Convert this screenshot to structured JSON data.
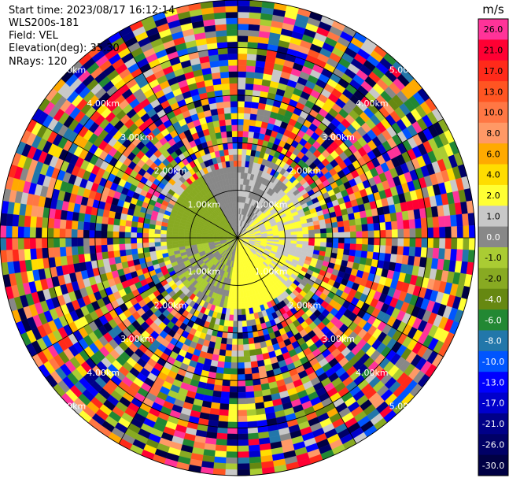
{
  "header": {
    "start_time": "Start time: 2023/08/17 16:12:14",
    "instrument": "WLS200s-181",
    "field": "Field: VEL",
    "elevation": "Elevation(deg): 35.30",
    "nrays": "NRays: 120"
  },
  "chart_data": {
    "type": "heatmap",
    "projection": "polar-ppi",
    "field": "VEL",
    "units": "m/s",
    "n_rays": 120,
    "range_rings_km": [
      1.0,
      2.0,
      3.0,
      4.0,
      5.0
    ],
    "range_ring_label_text": [
      "1.00km",
      "2.00km",
      "3.00km",
      "4.00km",
      "5.00km"
    ],
    "azimuth_spokes_deg": [
      0,
      30,
      60,
      90,
      120,
      150,
      180,
      210,
      240,
      270,
      300,
      330
    ],
    "colorbar": {
      "title": "m/s",
      "ticks": [
        {
          "value": 26.0,
          "label": "26.0",
          "color": "#ff3399"
        },
        {
          "value": 21.0,
          "label": "21.0",
          "color": "#ff0033"
        },
        {
          "value": 17.0,
          "label": "17.0",
          "color": "#ff2a1a"
        },
        {
          "value": 13.0,
          "label": "13.0",
          "color": "#ff5522"
        },
        {
          "value": 10.0,
          "label": "10.0",
          "color": "#ff7744"
        },
        {
          "value": 8.0,
          "label": "8.0",
          "color": "#ff9966"
        },
        {
          "value": 6.0,
          "label": "6.0",
          "color": "#ffaa00"
        },
        {
          "value": 4.0,
          "label": "4.0",
          "color": "#ffdd00"
        },
        {
          "value": 2.0,
          "label": "2.0",
          "color": "#ffff33"
        },
        {
          "value": 1.0,
          "label": "1.0",
          "color": "#c8c8c8"
        },
        {
          "value": 0.0,
          "label": "0.0",
          "color": "#888888"
        },
        {
          "value": -1.0,
          "label": "-1.0",
          "color": "#aacc33"
        },
        {
          "value": -2.0,
          "label": "-2.0",
          "color": "#88aa22"
        },
        {
          "value": -4.0,
          "label": "-4.0",
          "color": "#668811"
        },
        {
          "value": -6.0,
          "label": "-6.0",
          "color": "#228833"
        },
        {
          "value": -8.0,
          "label": "-8.0",
          "color": "#2277aa"
        },
        {
          "value": -10.0,
          "label": "-10.0",
          "color": "#0055ff"
        },
        {
          "value": -13.0,
          "label": "-13.0",
          "color": "#0000ff"
        },
        {
          "value": -17.0,
          "label": "-17.0",
          "color": "#0000cc"
        },
        {
          "value": -21.0,
          "label": "-21.0",
          "color": "#000088"
        },
        {
          "value": -26.0,
          "label": "-26.0",
          "color": "#000066"
        },
        {
          "value": -30.0,
          "label": "-30.0",
          "color": "#000044"
        }
      ]
    },
    "data_pattern": {
      "clean_echo_limit_km": 1.6,
      "near_field": [
        {
          "sector_deg": [
            0,
            45
          ],
          "velocity_ms": 1.0
        },
        {
          "sector_deg": [
            45,
            135
          ],
          "velocity_ms": 2.0
        },
        {
          "sector_deg": [
            135,
            190
          ],
          "velocity_ms": 3.0
        },
        {
          "sector_deg": [
            190,
            260
          ],
          "velocity_ms": 0.0
        },
        {
          "sector_deg": [
            260,
            330
          ],
          "velocity_ms": -1.5
        },
        {
          "sector_deg": [
            330,
            360
          ],
          "velocity_ms": 0.5
        }
      ],
      "far_field": "noise"
    }
  }
}
